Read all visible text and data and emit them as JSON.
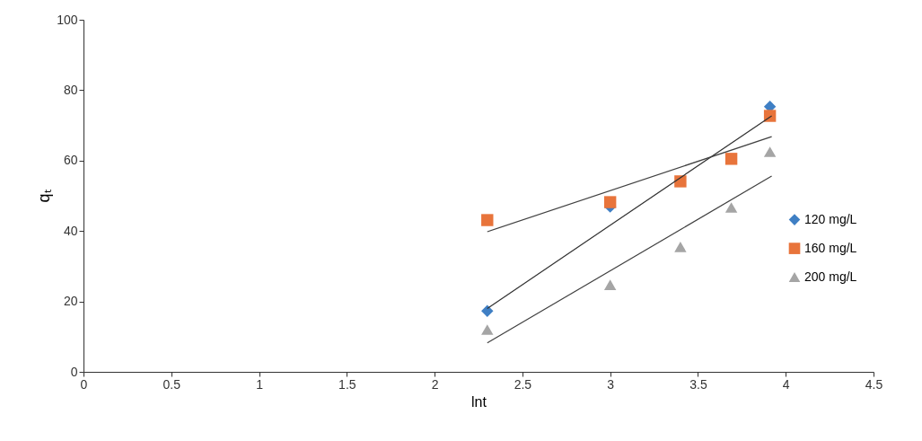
{
  "chart_data": {
    "type": "scatter",
    "xlabel": "lnt",
    "ylabel": "qₜ",
    "xlim": [
      0,
      4.5
    ],
    "xticks": [
      0,
      0.5,
      1,
      1.5,
      2,
      2.5,
      3,
      3.5,
      4,
      4.5
    ],
    "ylim": [
      0,
      100
    ],
    "yticks": [
      0,
      20,
      40,
      60,
      80,
      100
    ],
    "grid": false,
    "legend": "right",
    "series": [
      {
        "name": "120 mg/L",
        "color": "#3f7fc4",
        "marker": "diamond",
        "x": [
          2.3,
          3.0,
          3.91
        ],
        "values": [
          17.3,
          46.9,
          75.3
        ]
      },
      {
        "name": "160 mg/L",
        "color": "#e8743b",
        "marker": "square",
        "x": [
          2.3,
          3.0,
          3.4,
          3.69,
          3.91
        ],
        "values": [
          43.1,
          48.2,
          54.1,
          60.5,
          72.7
        ]
      },
      {
        "name": "200 mg/L",
        "color": "#a5a5a5",
        "marker": "triangle",
        "x": [
          2.3,
          3.0,
          3.4,
          3.69,
          3.91
        ],
        "values": [
          12.0,
          24.7,
          35.5,
          46.7,
          62.5
        ]
      },
      {
        "type": "line",
        "color": "#303030",
        "x": [
          2.3,
          3.92
        ],
        "values": [
          18.0,
          72.7
        ]
      },
      {
        "type": "line",
        "color": "#404040",
        "x": [
          2.3,
          3.92
        ],
        "values": [
          39.8,
          66.8
        ]
      },
      {
        "type": "line",
        "color": "#404040",
        "x": [
          2.3,
          3.92
        ],
        "values": [
          8.2,
          55.6
        ]
      }
    ]
  }
}
